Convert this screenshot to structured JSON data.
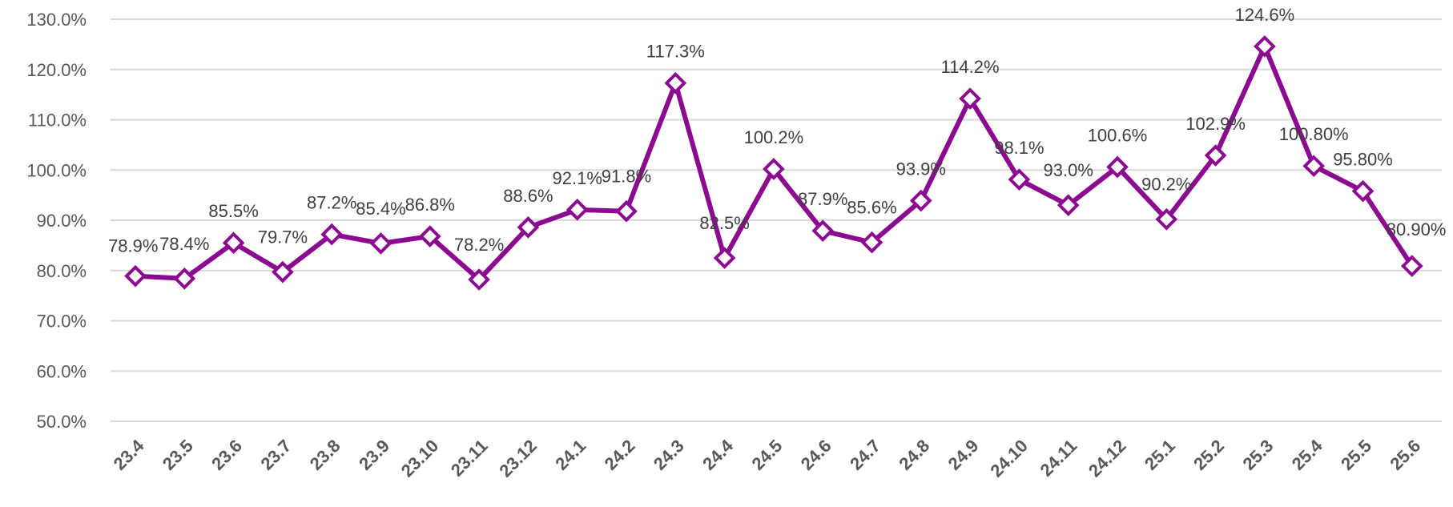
{
  "chart_data": {
    "type": "line",
    "title": "",
    "xlabel": "",
    "ylabel": "",
    "ylim": [
      50,
      130
    ],
    "ytick_step": 10,
    "ytick_labels": [
      "50.0%",
      "60.0%",
      "70.0%",
      "80.0%",
      "90.0%",
      "100.0%",
      "110.0%",
      "120.0%",
      "130.0%"
    ],
    "grid": true,
    "legend": "none",
    "line_color": "#8b0a8f",
    "marker_fill": "#ffffff",
    "marker": "diamond",
    "categories": [
      "23.4",
      "23.5",
      "23.6",
      "23.7",
      "23.8",
      "23.9",
      "23.10",
      "23.11",
      "23.12",
      "24.1",
      "24.2",
      "24.3",
      "24.4",
      "24.5",
      "24.6",
      "24.7",
      "24.8",
      "24.9",
      "24.10",
      "24.11",
      "24.12",
      "25.1",
      "25.2",
      "25.3",
      "25.4",
      "25.5",
      "25.6"
    ],
    "series": [
      {
        "values": [
          78.9,
          78.4,
          85.5,
          79.7,
          87.2,
          85.4,
          86.8,
          78.2,
          88.6,
          92.1,
          91.8,
          117.3,
          82.5,
          100.2,
          87.9,
          85.6,
          93.9,
          114.2,
          98.1,
          93.0,
          100.6,
          90.2,
          102.9,
          124.6,
          100.8,
          95.8,
          80.9
        ],
        "data_labels": [
          "78.9%",
          "78.4%",
          "85.5%",
          "79.7%",
          "87.2%",
          "85.4%",
          "86.8%",
          "78.2%",
          "88.6%",
          "92.1%",
          "91.8%",
          "117.3%",
          "82.5%",
          "100.2%",
          "87.9%",
          "85.6%",
          "93.9%",
          "114.2%",
          "98.1%",
          "93.0%",
          "100.6%",
          "90.2%",
          "102.9%",
          "124.6%",
          "100.80%",
          "95.80%",
          "80.90%"
        ]
      }
    ]
  }
}
